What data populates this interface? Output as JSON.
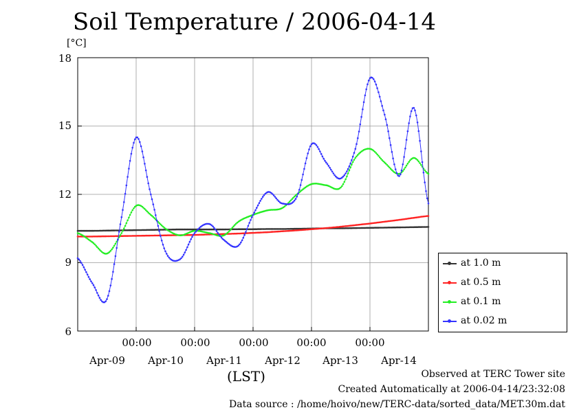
{
  "chart_data": {
    "type": "line",
    "title": "Soil Temperature / 2006-04-14",
    "ylabel": "[°C]",
    "xlabel": "(LST)",
    "ylim": [
      6,
      18
    ],
    "yticks": [
      "6",
      "9",
      "12",
      "15",
      "18"
    ],
    "xlim": [
      0,
      6
    ],
    "x_time_ticks": [
      "00:00",
      "00:00",
      "00:00",
      "00:00",
      "00:00"
    ],
    "x_date_ticks": [
      "Apr-09",
      "Apr-10",
      "Apr-11",
      "Apr-12",
      "Apr-13",
      "Apr-14"
    ],
    "grid": true,
    "legend_position": "right",
    "x": [
      0.0,
      0.25,
      0.5,
      0.75,
      1.0,
      1.25,
      1.5,
      1.75,
      2.0,
      2.25,
      2.5,
      2.75,
      3.0,
      3.25,
      3.5,
      3.75,
      4.0,
      4.25,
      4.5,
      4.75,
      5.0,
      5.25,
      5.5,
      5.75,
      6.0
    ],
    "series": [
      {
        "name": "at 1.0 m",
        "color": "#333333",
        "values": [
          10.4,
          10.4,
          10.41,
          10.42,
          10.43,
          10.44,
          10.45,
          10.46,
          10.46,
          10.46,
          10.46,
          10.47,
          10.47,
          10.48,
          10.48,
          10.49,
          10.5,
          10.51,
          10.51,
          10.52,
          10.53,
          10.54,
          10.55,
          10.56,
          10.57
        ]
      },
      {
        "name": "at 0.5 m",
        "color": "#ff2222",
        "values": [
          10.15,
          10.15,
          10.16,
          10.17,
          10.18,
          10.19,
          10.2,
          10.21,
          10.22,
          10.24,
          10.26,
          10.28,
          10.31,
          10.34,
          10.38,
          10.42,
          10.47,
          10.52,
          10.58,
          10.65,
          10.72,
          10.8,
          10.88,
          10.97,
          11.05
        ]
      },
      {
        "name": "at 0.1 m",
        "color": "#22ee22",
        "values": [
          10.3,
          9.9,
          9.4,
          10.3,
          11.5,
          11.1,
          10.5,
          10.2,
          10.4,
          10.3,
          10.2,
          10.8,
          11.1,
          11.3,
          11.4,
          12.0,
          12.45,
          12.4,
          12.3,
          13.6,
          14.0,
          13.4,
          12.9,
          13.6,
          12.9
        ]
      },
      {
        "name": "at 0.02 m",
        "color": "#3333ff",
        "values": [
          9.2,
          8.1,
          7.4,
          11.0,
          14.5,
          12.0,
          9.5,
          9.15,
          10.3,
          10.7,
          10.0,
          9.75,
          11.1,
          12.1,
          11.6,
          11.9,
          14.2,
          13.4,
          12.7,
          14.0,
          17.1,
          15.5,
          12.8,
          15.8,
          11.6
        ]
      }
    ]
  },
  "footer": {
    "observed": "Observed at TERC Tower site",
    "created": "Created Automatically at 2006-04-14/23:32:08",
    "source": "Data source : /home/hoivo/new/TERC-data/sorted_data/MET.30m.dat"
  }
}
